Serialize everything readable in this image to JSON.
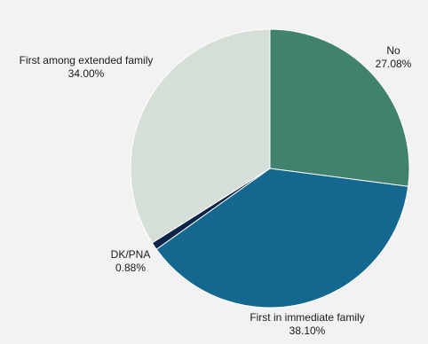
{
  "chart_data": {
    "type": "pie",
    "title": "",
    "start_angle_deg": 0,
    "direction": "clockwise",
    "slices": [
      {
        "label": "No",
        "value": 27.08,
        "value_label": "27.08%",
        "color": "#40826d"
      },
      {
        "label": "First in immediate family",
        "value": 38.1,
        "value_label": "38.10%",
        "color": "#146890"
      },
      {
        "label": "DK/PNA",
        "value": 0.88,
        "value_label": "0.88%",
        "color": "#0b2447"
      },
      {
        "label": "First among extended family",
        "value": 34.0,
        "value_label": "34.00%",
        "color": "#d6dfd7"
      }
    ],
    "legend": "none",
    "label_placement": "outside"
  }
}
